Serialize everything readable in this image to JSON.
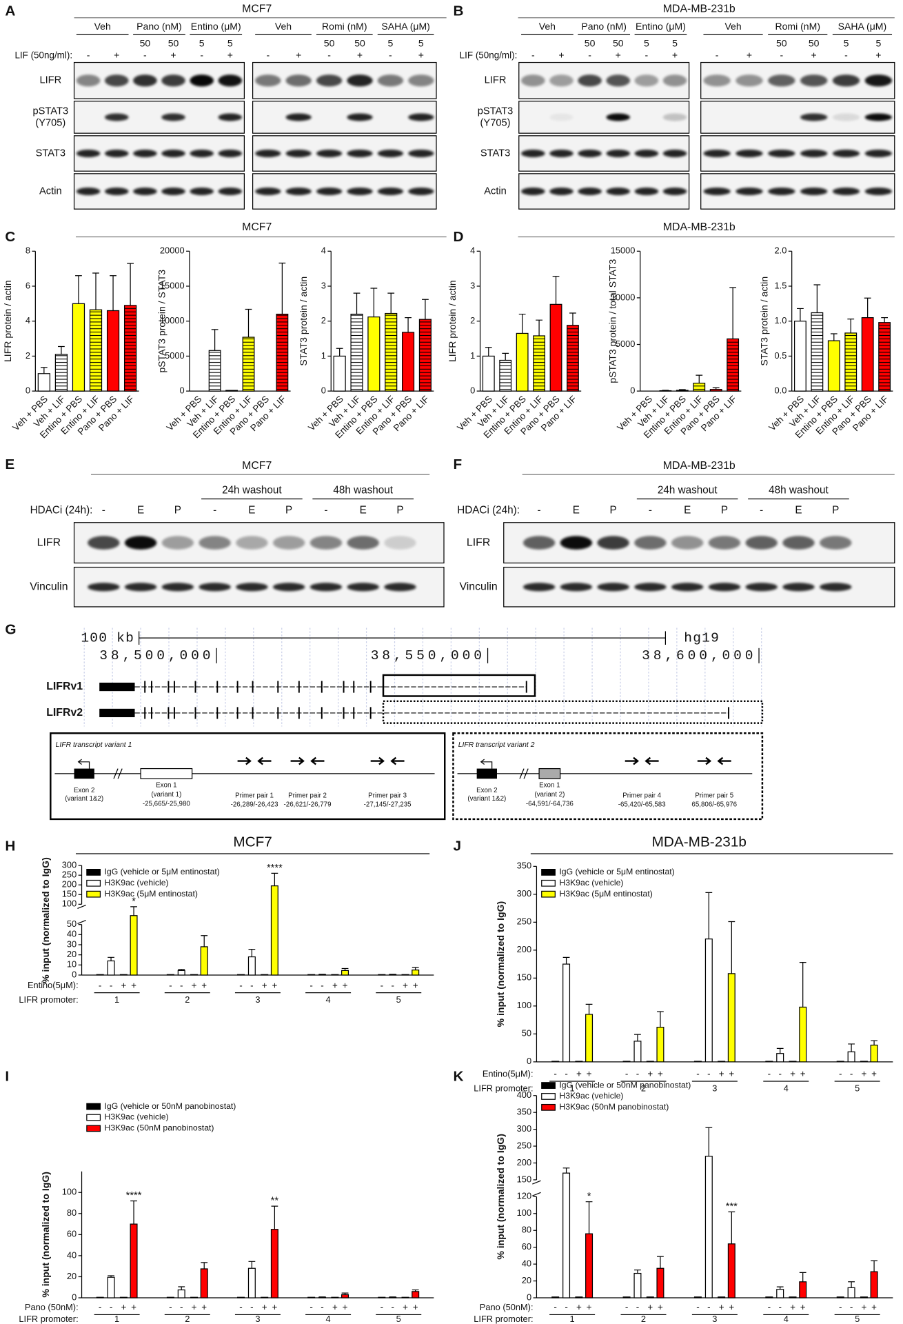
{
  "panel_letters": [
    "A",
    "B",
    "C",
    "D",
    "E",
    "F",
    "G",
    "H",
    "I",
    "J",
    "K"
  ],
  "blots_top": [
    {
      "title": "MCF7",
      "lif_label": "LIF (50ng/ml):",
      "rows": [
        [
          "LIFR"
        ],
        [
          "pSTAT3",
          "(Y705)"
        ],
        [
          "STAT3"
        ],
        [
          "Actin"
        ]
      ],
      "gels": [
        {
          "groups": [
            "Veh",
            "Pano (nM)",
            "Entino (μM)"
          ],
          "doses": [
            null,
            null,
            "50",
            "50",
            "5",
            "5"
          ],
          "lif": [
            "-",
            "+",
            "-",
            "+",
            "-",
            "+"
          ]
        },
        {
          "groups": [
            "Veh",
            "Romi (nM)",
            "SAHA (μM)"
          ],
          "doses": [
            null,
            null,
            "50",
            "50",
            "5",
            "5"
          ],
          "lif": [
            "-",
            "+",
            "-",
            "+",
            "-",
            "+"
          ]
        }
      ]
    },
    {
      "title": "MDA-MB-231b",
      "lif_label": "LIF (50ng/ml):",
      "rows": [
        [
          "LIFR"
        ],
        [
          "pSTAT3",
          "(Y705)"
        ],
        [
          "STAT3"
        ],
        [
          "Actin"
        ]
      ],
      "gels": [
        {
          "groups": [
            "Veh",
            "Pano (nM)",
            "Entino (μM)"
          ],
          "doses": [
            null,
            null,
            "50",
            "50",
            "5",
            "5"
          ],
          "lif": [
            "-",
            "+",
            "-",
            "+",
            "-",
            "+"
          ]
        },
        {
          "groups": [
            "Veh",
            "Romi (nM)",
            "SAHA (μM)"
          ],
          "doses": [
            null,
            null,
            "50",
            "50",
            "5",
            "5"
          ],
          "lif": [
            "-",
            "+",
            "-",
            "+",
            "-",
            "+"
          ]
        }
      ]
    }
  ],
  "section_titles": [
    "MCF7",
    "MDA-MB-231b"
  ],
  "blots_bottom": [
    {
      "title": "MCF7",
      "washouts": [
        "24h washout",
        "48h washout"
      ],
      "hdaci_label": "HDACi (24h):",
      "lanes": [
        "-",
        "E",
        "P",
        "-",
        "E",
        "P",
        "-",
        "E",
        "P"
      ],
      "rows": [
        "LIFR",
        "Vinculin"
      ]
    },
    {
      "title": "MDA-MB-231b",
      "washouts": [
        "24h washout",
        "48h washout"
      ],
      "hdaci_label": "HDACi (24h):",
      "lanes": [
        "-",
        "E",
        "P",
        "-",
        "E",
        "P",
        "-",
        "E",
        "P"
      ],
      "rows": [
        "LIFR",
        "Vinculin"
      ]
    }
  ],
  "genome": {
    "scale": "100 kb",
    "assembly": "hg19",
    "coordinates": [
      "38,500,000",
      "38,550,000",
      "38,600,000"
    ],
    "transcripts": [
      "LIFRv1",
      "LIFRv2"
    ],
    "variants": [
      {
        "title": "LIFR transcript variant 1",
        "exon2": [
          "Exon 2",
          "(variant 1&2)"
        ],
        "exon1": [
          "Exon 1",
          "(variant 1)",
          "-25,665/-25,980"
        ],
        "primers": [
          [
            "Primer pair 1",
            "-26,289/-26,423"
          ],
          [
            "Primer pair 2",
            "-26,621/-26,779"
          ],
          [
            "Primer pair 3",
            "-27,145/-27,235"
          ]
        ]
      },
      {
        "title": "LIFR transcript variant 2",
        "exon2": [
          "Exon 2",
          "(variant 1&2)"
        ],
        "exon1": [
          "Exon 1",
          "(variant 2)",
          "-64,591/-64,736"
        ],
        "primers": [
          [
            "Primer pair 4",
            "-65,420/-65,583"
          ],
          [
            "Primer pair 5",
            "65,806/-65,976"
          ]
        ]
      }
    ]
  },
  "chart_data": [
    {
      "type": "bar",
      "ylabel": "LIFR protein / actin",
      "categories": [
        "Veh + PBS",
        "Veh + LIF",
        "Entino + PBS",
        "Entino + LIF",
        "Pano + PBS",
        "Pano + LIF"
      ],
      "values": [
        1.0,
        2.1,
        5.0,
        4.65,
        4.6,
        4.9
      ],
      "errors": [
        0.35,
        0.45,
        1.6,
        2.1,
        2.0,
        2.4
      ],
      "colors": [
        "#ffffff",
        "#ffffff",
        "#ffff00",
        "#ffff00",
        "#ff0000",
        "#ff0000"
      ],
      "hatched": [
        false,
        true,
        false,
        true,
        false,
        true
      ],
      "ylim": [
        0,
        8
      ],
      "yticks": [
        0,
        2,
        4,
        6,
        8
      ]
    },
    {
      "type": "bar",
      "ylabel": "pSTAT3 protein / STAT3",
      "categories": [
        "Veh + PBS",
        "Veh + LIF",
        "Entino + PBS",
        "Entino + LIF",
        "Pano + PBS",
        "Pano + LIF"
      ],
      "values": [
        0,
        5800,
        100,
        7700,
        0,
        11000
      ],
      "errors": [
        0,
        3000,
        0,
        4000,
        0,
        7300
      ],
      "colors": [
        "#ffffff",
        "#ffffff",
        "#ffff00",
        "#ffff00",
        "#ff0000",
        "#ff0000"
      ],
      "hatched": [
        false,
        true,
        false,
        true,
        false,
        true
      ],
      "ylim": [
        0,
        20000
      ],
      "yticks": [
        0,
        5000,
        10000,
        15000,
        20000
      ]
    },
    {
      "type": "bar",
      "ylabel": "STAT3 protein / actin",
      "categories": [
        "Veh + PBS",
        "Veh + LIF",
        "Entino + PBS",
        "Entino + LIF",
        "Pano + PBS",
        "Pano + LIF"
      ],
      "values": [
        1.0,
        2.2,
        2.12,
        2.22,
        1.68,
        2.05
      ],
      "errors": [
        0.22,
        0.6,
        0.82,
        0.58,
        0.42,
        0.57
      ],
      "colors": [
        "#ffffff",
        "#ffffff",
        "#ffff00",
        "#ffff00",
        "#ff0000",
        "#ff0000"
      ],
      "hatched": [
        false,
        true,
        false,
        true,
        false,
        true
      ],
      "ylim": [
        0,
        4
      ],
      "yticks": [
        0,
        1,
        2,
        3,
        4
      ]
    },
    {
      "type": "bar",
      "ylabel": "LIFR protein / actin",
      "categories": [
        "Veh + PBS",
        "Veh + LIF",
        "Entino + PBS",
        "Entino + LIF",
        "Pano + PBS",
        "Pano + LIF"
      ],
      "values": [
        1.0,
        0.88,
        1.65,
        1.58,
        2.48,
        1.88
      ],
      "errors": [
        0.25,
        0.2,
        0.55,
        0.45,
        0.8,
        0.35
      ],
      "colors": [
        "#ffffff",
        "#ffffff",
        "#ffff00",
        "#ffff00",
        "#ff0000",
        "#ff0000"
      ],
      "hatched": [
        false,
        true,
        false,
        true,
        false,
        true
      ],
      "ylim": [
        0,
        4
      ],
      "yticks": [
        0,
        1,
        2,
        3,
        4
      ]
    },
    {
      "type": "bar",
      "ylabel": "pSTAT3 protein / total STAT3",
      "categories": [
        "Veh + PBS",
        "Veh + LIF",
        "Entino + PBS",
        "Entino + LIF",
        "Pano + PBS",
        "Pano + LIF"
      ],
      "values": [
        0,
        40,
        80,
        850,
        180,
        5600
      ],
      "errors": [
        0,
        40,
        80,
        850,
        180,
        5500
      ],
      "colors": [
        "#ffffff",
        "#ffffff",
        "#ffff00",
        "#ffff00",
        "#ff0000",
        "#ff0000"
      ],
      "hatched": [
        false,
        true,
        false,
        true,
        false,
        true
      ],
      "ylim": [
        0,
        15000
      ],
      "yticks": [
        0,
        5000,
        10000,
        15000
      ]
    },
    {
      "type": "bar",
      "ylabel": "STAT3 protein / actin",
      "categories": [
        "Veh + PBS",
        "Veh + LIF",
        "Entino + PBS",
        "Entino + LIF",
        "Pano + PBS",
        "Pano + LIF"
      ],
      "values": [
        1.0,
        1.12,
        0.72,
        0.83,
        1.05,
        0.98
      ],
      "errors": [
        0.18,
        0.4,
        0.1,
        0.2,
        0.28,
        0.07
      ],
      "colors": [
        "#ffffff",
        "#ffffff",
        "#ffff00",
        "#ffff00",
        "#ff0000",
        "#ff0000"
      ],
      "hatched": [
        false,
        true,
        false,
        true,
        false,
        true
      ],
      "ylim": [
        0,
        2
      ],
      "yticks": [
        {
          "value": 0,
          "label": "0.0"
        },
        {
          "value": 0.5,
          "label": "0.5"
        },
        {
          "value": 1,
          "label": "1.0"
        },
        {
          "value": 1.5,
          "label": "1.5"
        },
        {
          "value": 2,
          "label": "2.0"
        }
      ]
    },
    {
      "type": "grouped-bar",
      "title": "MCF7",
      "ylabel": "% input (normalized to IgG)",
      "treatment_label": "Entino(5μM):",
      "group_label": "LIFR promoter:",
      "groups": [
        "1",
        "2",
        "3",
        "4",
        "5"
      ],
      "conditions": [
        "-",
        "-",
        "+",
        "+"
      ],
      "series": [
        {
          "name": "IgG (vehicle or 5μM entinostat)",
          "color": "#000000",
          "values": [
            0.5,
            0.5,
            0.5,
            0.5,
            0.5,
            0.5,
            0.5,
            0.5,
            0.5,
            0.5
          ]
        },
        {
          "name": "H3K9ac (vehicle)",
          "color": "#ffffff",
          "values": [
            14,
            4.5,
            18,
            0.5,
            0.5
          ],
          "errors": [
            3.5,
            1,
            7.5,
            0.3,
            0.3
          ]
        },
        {
          "name": "H3K9ac (5μM entinostat)",
          "color": "#ffff00",
          "values": [
            72,
            28,
            195,
            4.5,
            5
          ],
          "errors": [
            22,
            11,
            65,
            2,
            2.5
          ]
        }
      ],
      "significance": [
        "*",
        null,
        "****",
        null,
        null
      ],
      "y_segments": [
        {
          "ylim": [
            0,
            50
          ],
          "yticks": [
            0,
            10,
            20,
            30,
            40,
            50
          ]
        },
        {
          "ylim": [
            100,
            300
          ],
          "yticks": [
            100,
            150,
            200,
            250,
            300
          ]
        }
      ]
    },
    {
      "type": "grouped-bar",
      "title": "MDA-MB-231b",
      "ylabel": "% input (normalized to IgG)",
      "treatment_label": "Entino(5μM):",
      "group_label": "LIFR promoter:",
      "groups": [
        "1",
        "2",
        "3",
        "4",
        "5"
      ],
      "conditions": [
        "-",
        "-",
        "+",
        "+"
      ],
      "series": [
        {
          "name": "IgG (vehicle or 5μM entinostat)",
          "color": "#000000",
          "values": [
            1,
            1,
            1,
            1,
            1,
            1,
            1,
            1,
            1,
            1
          ]
        },
        {
          "name": "H3K9ac (vehicle)",
          "color": "#ffffff",
          "values": [
            175,
            37,
            220,
            15,
            18
          ],
          "errors": [
            12,
            12,
            83,
            9,
            14
          ]
        },
        {
          "name": "H3K9ac (5μM entinostat)",
          "color": "#ffff00",
          "values": [
            85,
            62,
            158,
            98,
            30
          ],
          "errors": [
            18,
            28,
            93,
            80,
            8
          ]
        }
      ],
      "ylim": [
        0,
        350
      ],
      "yticks": [
        0,
        50,
        100,
        150,
        200,
        250,
        300,
        350
      ]
    },
    {
      "type": "grouped-bar",
      "ylabel": "% input (normalized to IgG)",
      "treatment_label": "Pano (50nM):",
      "group_label": "LIFR promoter:",
      "groups": [
        "1",
        "2",
        "3",
        "4",
        "5"
      ],
      "conditions": [
        "-",
        "-",
        "+",
        "+"
      ],
      "series": [
        {
          "name": "IgG (vehicle or 50nM panobinostat)",
          "color": "#000000",
          "values": [
            0.5,
            0.5,
            0.5,
            0.5,
            0.5,
            0.5,
            0.5,
            0.5,
            0.5,
            0.5
          ]
        },
        {
          "name": "H3K9ac (vehicle)",
          "color": "#ffffff",
          "values": [
            19.5,
            7.5,
            28,
            0.5,
            0.5
          ],
          "errors": [
            1.5,
            3,
            6.5,
            0.3,
            0.3
          ]
        },
        {
          "name": "H3K9ac (50nM panobinostat)",
          "color": "#ff0000",
          "values": [
            70,
            27.5,
            65,
            3,
            6
          ],
          "errors": [
            22,
            6,
            22,
            1.5,
            1.5
          ]
        }
      ],
      "significance": [
        "****",
        null,
        "**",
        null,
        null
      ],
      "ylim": [
        0,
        120
      ],
      "yticks": [
        0,
        20,
        40,
        60,
        80,
        100
      ]
    },
    {
      "type": "grouped-bar",
      "ylabel": "% input (normalized to IgG)",
      "treatment_label": "Pano (50nM):",
      "group_label": "LIFR promoter:",
      "groups": [
        "1",
        "2",
        "3",
        "4",
        "5"
      ],
      "conditions": [
        "-",
        "-",
        "+",
        "+"
      ],
      "series": [
        {
          "name": "IgG (vehicle or 50nM panobinostat)",
          "color": "#000000",
          "values": [
            1,
            1,
            1,
            1,
            1,
            1,
            1,
            1,
            1,
            1
          ]
        },
        {
          "name": "H3K9ac (vehicle)",
          "color": "#ffffff",
          "values": [
            170,
            29,
            220,
            10,
            12
          ],
          "errors": [
            15,
            4,
            85,
            3,
            7
          ]
        },
        {
          "name": "H3K9ac (50nM panobinostat)",
          "color": "#ff0000",
          "values": [
            76,
            35,
            64,
            19,
            31
          ],
          "errors": [
            38,
            14,
            38,
            11,
            13
          ]
        }
      ],
      "significance": [
        "*",
        null,
        "***",
        null,
        null
      ],
      "y_segments": [
        {
          "ylim": [
            0,
            120
          ],
          "yticks": [
            0,
            20,
            40,
            60,
            80,
            100,
            120
          ]
        },
        {
          "ylim": [
            150,
            400
          ],
          "yticks": [
            150,
            200,
            250,
            300,
            350,
            400
          ]
        }
      ]
    }
  ]
}
